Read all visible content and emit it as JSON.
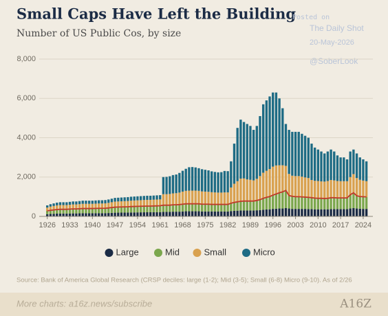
{
  "chart_data": {
    "type": "stacked-bar",
    "title": "Small Caps Have Left the Building",
    "subtitle": "Number of US Public Cos, by size",
    "source": "Source: Bank of America Global Research (CRSP deciles: large (1-2); Mid (3-5); Small (6-8) Micro (9-10). As of 2/26",
    "footer": "More charts: a16z.news/subscribe",
    "logo": "A16Z",
    "watermark": [
      "Posted on",
      "The Daily Shot",
      "20-May-2026",
      "@SoberLook"
    ],
    "x": [
      1926,
      1927,
      1928,
      1929,
      1930,
      1931,
      1932,
      1933,
      1934,
      1935,
      1936,
      1937,
      1938,
      1939,
      1940,
      1941,
      1942,
      1943,
      1944,
      1945,
      1946,
      1947,
      1948,
      1949,
      1950,
      1951,
      1952,
      1953,
      1954,
      1955,
      1956,
      1957,
      1958,
      1959,
      1960,
      1961,
      1962,
      1963,
      1964,
      1965,
      1966,
      1967,
      1968,
      1969,
      1970,
      1971,
      1972,
      1973,
      1974,
      1975,
      1976,
      1977,
      1978,
      1979,
      1980,
      1981,
      1982,
      1983,
      1984,
      1985,
      1986,
      1987,
      1988,
      1989,
      1990,
      1991,
      1992,
      1993,
      1994,
      1995,
      1996,
      1997,
      1998,
      1999,
      2000,
      2001,
      2002,
      2003,
      2004,
      2005,
      2006,
      2007,
      2008,
      2009,
      2010,
      2011,
      2012,
      2013,
      2014,
      2015,
      2016,
      2017,
      2018,
      2019,
      2020,
      2021,
      2022,
      2023,
      2024,
      2025
    ],
    "xlim": [
      1923.5,
      2027
    ],
    "xticks": [
      1926,
      1933,
      1940,
      1947,
      1954,
      1961,
      1968,
      1975,
      1982,
      1989,
      1996,
      2003,
      2010,
      2017,
      2024
    ],
    "ylim": [
      0,
      8000
    ],
    "yticks": [
      0,
      {
        "value": 2000,
        "label": "2,000"
      },
      {
        "value": 4000,
        "label": "4,000"
      },
      {
        "value": 6000,
        "label": "6,000"
      },
      {
        "value": 8000,
        "label": "8,000"
      }
    ],
    "grid": true,
    "line_color": "#c0392b",
    "series": [
      {
        "name": "Large",
        "color": "#1b2b45",
        "values": [
          112,
          124,
          132,
          140,
          144,
          144,
          144,
          148,
          152,
          152,
          156,
          160,
          160,
          160,
          160,
          162,
          164,
          164,
          166,
          172,
          180,
          188,
          190,
          192,
          194,
          196,
          200,
          202,
          204,
          206,
          208,
          210,
          210,
          212,
          214,
          216,
          230,
          230,
          230,
          240,
          240,
          240,
          250,
          260,
          260,
          260,
          260,
          260,
          250,
          250,
          250,
          250,
          250,
          250,
          250,
          250,
          250,
          270,
          280,
          290,
          300,
          300,
          300,
          300,
          300,
          310,
          320,
          340,
          350,
          360,
          380,
          390,
          400,
          400,
          420,
          400,
          380,
          380,
          380,
          380,
          380,
          370,
          370,
          360,
          360,
          360,
          360,
          360,
          370,
          370,
          370,
          370,
          370,
          370,
          400,
          420,
          400,
          390,
          380,
          380
        ]
      },
      {
        "name": "Mid",
        "color": "#7ba74d",
        "values": [
          168,
          186,
          198,
          210,
          216,
          216,
          216,
          222,
          228,
          228,
          234,
          240,
          240,
          240,
          240,
          243,
          246,
          246,
          249,
          258,
          270,
          282,
          285,
          288,
          291,
          294,
          300,
          303,
          306,
          309,
          312,
          315,
          315,
          318,
          321,
          324,
          340,
          340,
          340,
          350,
          350,
          360,
          370,
          380,
          380,
          380,
          380,
          380,
          370,
          370,
          370,
          360,
          360,
          360,
          360,
          360,
          360,
          400,
          430,
          450,
          470,
          480,
          480,
          480,
          480,
          500,
          530,
          580,
          620,
          650,
          700,
          750,
          800,
          850,
          900,
          660,
          640,
          620,
          620,
          610,
          600,
          600,
          580,
          570,
          560,
          560,
          550,
          560,
          580,
          580,
          570,
          570,
          570,
          570,
          700,
          780,
          650,
          620,
          620,
          610
        ]
      },
      {
        "name": "Small",
        "color": "#d9a14f",
        "values": [
          168,
          186,
          198,
          210,
          216,
          216,
          216,
          222,
          228,
          228,
          234,
          240,
          240,
          240,
          240,
          243,
          246,
          246,
          249,
          258,
          270,
          282,
          285,
          288,
          291,
          294,
          300,
          303,
          306,
          309,
          312,
          315,
          315,
          318,
          321,
          324,
          560,
          560,
          570,
          580,
          590,
          610,
          640,
          660,
          670,
          670,
          670,
          660,
          650,
          640,
          630,
          620,
          610,
          600,
          600,
          610,
          610,
          800,
          950,
          1050,
          1150,
          1150,
          1100,
          1080,
          1050,
          1100,
          1200,
          1300,
          1350,
          1400,
          1450,
          1450,
          1400,
          1350,
          1250,
          1100,
          1050,
          1050,
          1050,
          1030,
          1000,
          980,
          900,
          880,
          880,
          860,
          860,
          880,
          900,
          880,
          860,
          850,
          850,
          850,
          900,
          950,
          900,
          850,
          820,
          800
        ]
      },
      {
        "name": "Micro",
        "color": "#1e6b84",
        "values": [
          112,
          124,
          132,
          140,
          144,
          144,
          144,
          148,
          152,
          152,
          156,
          160,
          160,
          160,
          160,
          162,
          164,
          164,
          166,
          172,
          180,
          188,
          190,
          192,
          194,
          196,
          200,
          202,
          204,
          206,
          208,
          210,
          210,
          212,
          214,
          216,
          870,
          880,
          900,
          930,
          950,
          1000,
          1060,
          1120,
          1190,
          1200,
          1180,
          1150,
          1130,
          1110,
          1090,
          1060,
          1040,
          1030,
          1040,
          1090,
          1080,
          1330,
          2040,
          2710,
          3000,
          2870,
          2820,
          2740,
          2570,
          2690,
          3050,
          3480,
          3580,
          3690,
          3770,
          3710,
          3400,
          2900,
          2130,
          2240,
          2230,
          2250,
          2250,
          2180,
          2120,
          2050,
          1850,
          1690,
          1600,
          1520,
          1430,
          1500,
          1550,
          1470,
          1300,
          1210,
          1210,
          1110,
          1300,
          1250,
          1250,
          1140,
          1080,
          1010
        ]
      }
    ]
  }
}
